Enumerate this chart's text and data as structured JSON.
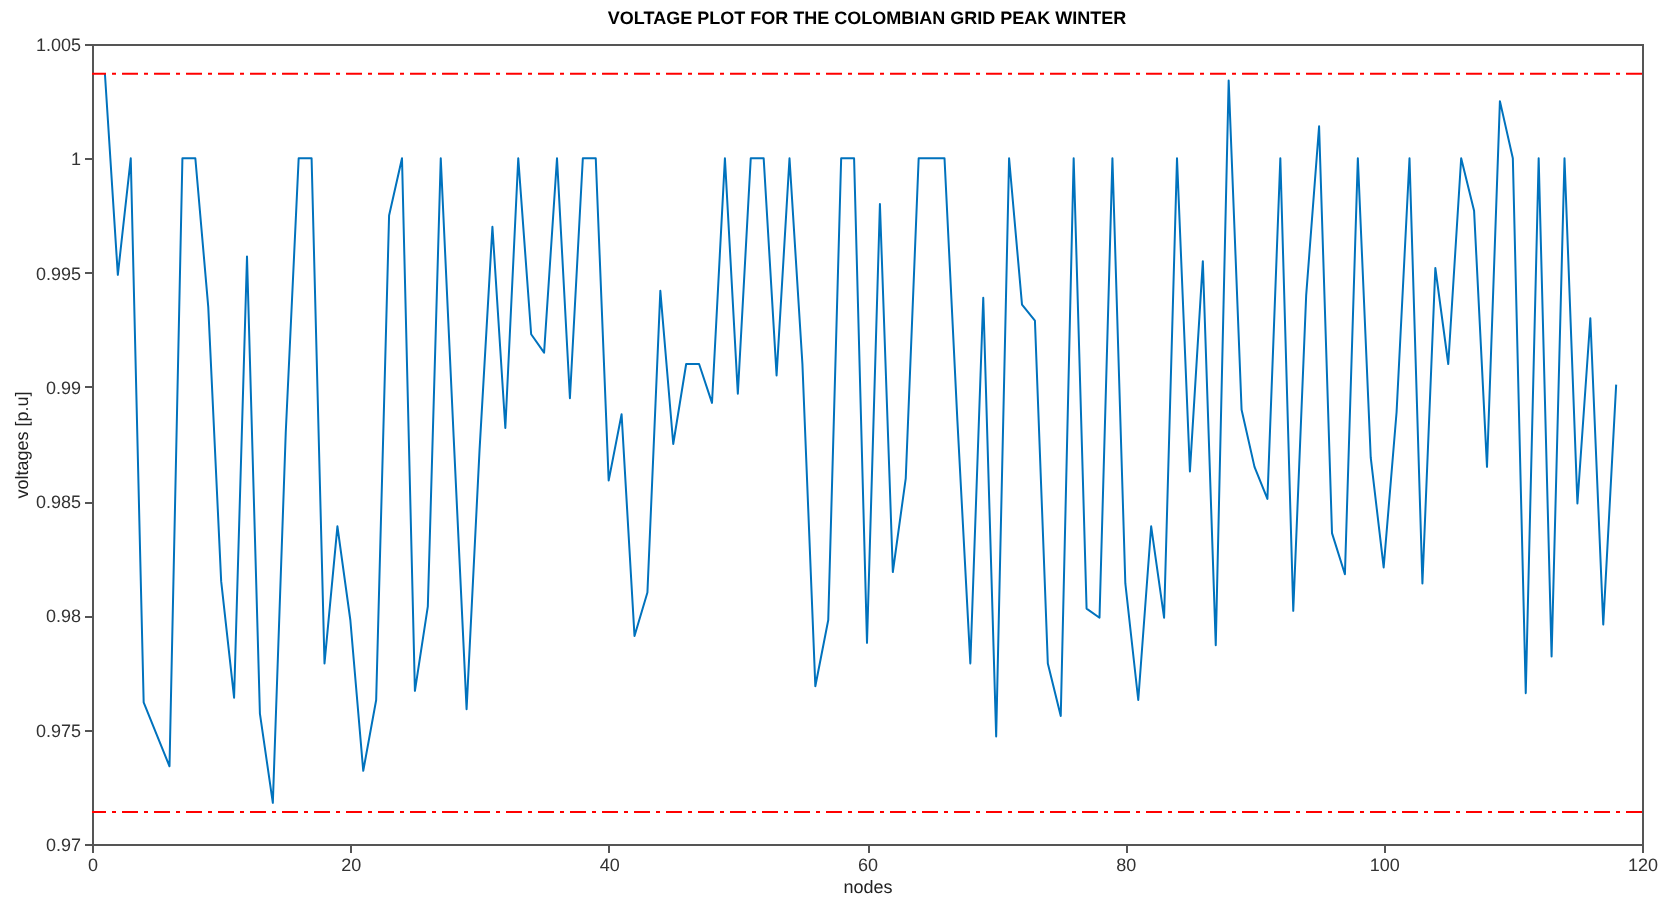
{
  "chart_data": {
    "type": "line",
    "title": "VOLTAGE PLOT FOR THE COLOMBIAN GRID PEAK WINTER",
    "xlabel": "nodes",
    "ylabel": "voltages [p.u]",
    "x": [
      1,
      2,
      3,
      4,
      5,
      6,
      7,
      8,
      9,
      10,
      11,
      12,
      13,
      14,
      15,
      16,
      17,
      18,
      19,
      20,
      21,
      22,
      23,
      24,
      25,
      26,
      27,
      28,
      29,
      30,
      31,
      32,
      33,
      34,
      35,
      36,
      37,
      38,
      39,
      40,
      41,
      42,
      43,
      44,
      45,
      46,
      47,
      48,
      49,
      50,
      51,
      52,
      53,
      54,
      55,
      56,
      57,
      58,
      59,
      60,
      61,
      62,
      63,
      64,
      65,
      66,
      67,
      68,
      69,
      70,
      71,
      72,
      73,
      74,
      75,
      76,
      77,
      78,
      79,
      80,
      81,
      82,
      83,
      84,
      85,
      86,
      87,
      88,
      89,
      90,
      91,
      92,
      93,
      94,
      95,
      96,
      97,
      98,
      99,
      100,
      101,
      102,
      103,
      104,
      105,
      106,
      107,
      108,
      109,
      110,
      111,
      112,
      113,
      114,
      115,
      116,
      117,
      118
    ],
    "series": [
      {
        "color": "#0072bd",
        "values": [
          1.0037,
          0.9949,
          1.0,
          0.9762,
          0.9748,
          0.9734,
          1.0,
          1.0,
          0.9935,
          0.9815,
          0.9764,
          0.9957,
          0.9757,
          0.9718,
          0.988,
          1.0,
          1.0,
          0.9779,
          0.9839,
          0.9798,
          0.9732,
          0.9763,
          0.9975,
          1.0,
          0.9767,
          0.9804,
          1.0,
          0.9878,
          0.9759,
          0.9872,
          0.997,
          0.9882,
          1.0,
          0.9923,
          0.9915,
          1.0,
          0.9895,
          1.0,
          1.0,
          0.9859,
          0.9888,
          0.9791,
          0.981,
          0.9942,
          0.9875,
          0.991,
          0.991,
          0.9893,
          1.0,
          0.9897,
          1.0,
          1.0,
          0.9905,
          1.0,
          0.991,
          0.9769,
          0.9798,
          1.0,
          1.0,
          0.9788,
          0.998,
          0.9819,
          0.986,
          1.0,
          1.0,
          1.0,
          0.9885,
          0.9779,
          0.9939,
          0.9747,
          1.0,
          0.9936,
          0.9929,
          0.9779,
          0.9756,
          1.0,
          0.9803,
          0.9799,
          1.0,
          0.9814,
          0.9763,
          0.9839,
          0.9799,
          1.0,
          0.9863,
          0.9955,
          0.9787,
          1.0034,
          0.989,
          0.9865,
          0.9851,
          1.0,
          0.9802,
          0.994,
          1.0014,
          0.9836,
          0.9818,
          1.0,
          0.9869,
          0.9821,
          0.9889,
          1.0,
          0.9814,
          0.9952,
          0.991,
          1.0,
          0.9977,
          0.9865,
          1.0025,
          1.0,
          0.9766,
          1.0,
          0.9782,
          1.0,
          0.9849,
          0.993,
          0.9796,
          0.9901
        ]
      }
    ],
    "xlim": [
      0,
      120
    ],
    "xticks": [
      0,
      20,
      40,
      60,
      80,
      100,
      120
    ],
    "ylim": [
      0.97,
      1.005
    ],
    "yticks": [
      0.97,
      0.975,
      0.98,
      0.985,
      0.99,
      0.995,
      1,
      1.005
    ],
    "ref_lines": [
      {
        "axis": "y",
        "value": 1.0037,
        "color": "#ff0000",
        "line_style": "dashed"
      },
      {
        "axis": "y",
        "value": 0.9714,
        "color": "#ff0000",
        "line_style": "dashed"
      }
    ],
    "grid": false,
    "marker": "none",
    "line_style": "solid"
  }
}
